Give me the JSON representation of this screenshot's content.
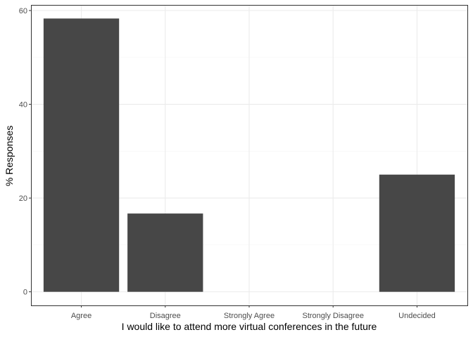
{
  "chart_data": {
    "type": "bar",
    "title": "",
    "xlabel": "I would like to attend more virtual conferences in the future",
    "ylabel": "% Responses",
    "categories": [
      "Agree",
      "Disagree",
      "Strongly Agree",
      "Strongly Disagree",
      "Undecided"
    ],
    "values": [
      58.3,
      16.7,
      0,
      0,
      25.0
    ],
    "ylim": [
      -2.9,
      61.2
    ],
    "yticks": [
      0,
      20,
      40,
      60
    ],
    "ytick_labels": [
      "0",
      "20",
      "40",
      "60"
    ],
    "grid": true,
    "legend": "none",
    "colors": {
      "bar": "#474747",
      "panel_border": "#333333",
      "grid_major": "#ebebeb",
      "grid_minor": "#f5f5f5",
      "tick_text": "#4d4d4d",
      "tick_mark": "#333333"
    }
  }
}
